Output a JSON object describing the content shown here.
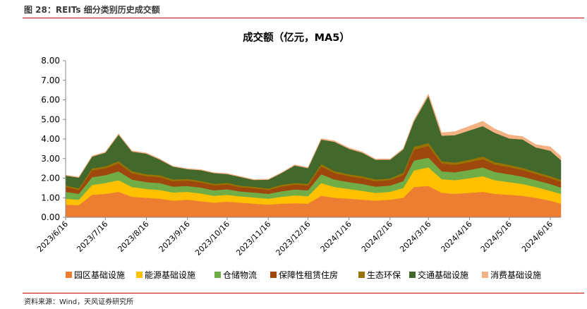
{
  "header": {
    "caption": "图 28：REITs 细分类别历史成交额"
  },
  "footer": {
    "source": "资料来源：Wind，天风证券研究所"
  },
  "chart_data": {
    "type": "area",
    "stacked": true,
    "title": "成交额（亿元，MA5）",
    "ylim": [
      0,
      8
    ],
    "yticks": [
      "0.00",
      "1.00",
      "2.00",
      "3.00",
      "4.00",
      "5.00",
      "6.00",
      "7.00",
      "8.00"
    ],
    "grid": false,
    "legend_position": "bottom",
    "x_tick_labels": [
      "2023/6/16",
      "2023/7/16",
      "2023/8/16",
      "2023/9/16",
      "2023/10/16",
      "2023/11/16",
      "2023/12/16",
      "2024/1/16",
      "2024/2/16",
      "2024/3/16",
      "2024/4/16",
      "2024/5/16",
      "2024/6/16"
    ],
    "x": [
      "2023/6/16",
      "2023/6/26",
      "2023/7/6",
      "2023/7/16",
      "2023/7/26",
      "2023/8/5",
      "2023/8/16",
      "2023/8/26",
      "2023/9/5",
      "2023/9/16",
      "2023/9/26",
      "2023/10/6",
      "2023/10/16",
      "2023/10/26",
      "2023/11/5",
      "2023/11/16",
      "2023/11/26",
      "2023/12/6",
      "2023/12/16",
      "2023/12/26",
      "2024/1/5",
      "2024/1/16",
      "2024/1/26",
      "2024/2/5",
      "2024/2/16",
      "2024/2/26",
      "2024/3/5",
      "2024/3/16",
      "2024/3/26",
      "2024/4/5",
      "2024/4/16",
      "2024/4/26",
      "2024/5/5",
      "2024/5/16",
      "2024/5/26",
      "2024/6/5",
      "2024/6/16",
      "2024/6/24"
    ],
    "series": [
      {
        "name": "园区基础设施",
        "color": "#ed7d31",
        "values": [
          0.65,
          0.62,
          1.15,
          1.2,
          1.3,
          1.05,
          1.0,
          0.95,
          0.85,
          0.9,
          0.82,
          0.75,
          0.8,
          0.75,
          0.7,
          0.65,
          0.7,
          0.72,
          0.7,
          1.1,
          1.0,
          0.95,
          0.9,
          0.85,
          0.9,
          1.0,
          1.55,
          1.6,
          1.25,
          1.2,
          1.25,
          1.3,
          1.2,
          1.15,
          1.1,
          1.0,
          0.85,
          0.7
        ]
      },
      {
        "name": "能源基础设施",
        "color": "#ffc000",
        "values": [
          0.3,
          0.28,
          0.5,
          0.55,
          0.6,
          0.5,
          0.45,
          0.45,
          0.42,
          0.4,
          0.4,
          0.35,
          0.35,
          0.32,
          0.32,
          0.3,
          0.35,
          0.4,
          0.38,
          0.65,
          0.55,
          0.5,
          0.45,
          0.4,
          0.4,
          0.5,
          0.85,
          0.95,
          0.7,
          0.7,
          0.75,
          0.8,
          0.7,
          0.65,
          0.6,
          0.55,
          0.5,
          0.5
        ]
      },
      {
        "name": "仓储物流",
        "color": "#70ad47",
        "values": [
          0.35,
          0.3,
          0.4,
          0.4,
          0.45,
          0.38,
          0.35,
          0.35,
          0.3,
          0.3,
          0.3,
          0.28,
          0.28,
          0.25,
          0.25,
          0.25,
          0.28,
          0.3,
          0.3,
          0.45,
          0.38,
          0.35,
          0.35,
          0.32,
          0.32,
          0.35,
          0.5,
          0.5,
          0.4,
          0.4,
          0.42,
          0.45,
          0.42,
          0.4,
          0.38,
          0.35,
          0.35,
          0.32
        ]
      },
      {
        "name": "保障性租赁住房",
        "color": "#9e480e",
        "values": [
          0.25,
          0.2,
          0.35,
          0.35,
          0.4,
          0.33,
          0.3,
          0.3,
          0.28,
          0.28,
          0.26,
          0.25,
          0.25,
          0.22,
          0.22,
          0.2,
          0.25,
          0.25,
          0.25,
          0.4,
          0.33,
          0.3,
          0.3,
          0.28,
          0.28,
          0.32,
          0.55,
          0.6,
          0.4,
          0.38,
          0.4,
          0.42,
          0.38,
          0.36,
          0.34,
          0.32,
          0.3,
          0.3
        ]
      },
      {
        "name": "生态环保",
        "color": "#997300",
        "values": [
          0.08,
          0.08,
          0.1,
          0.1,
          0.12,
          0.1,
          0.1,
          0.1,
          0.09,
          0.08,
          0.08,
          0.08,
          0.08,
          0.07,
          0.07,
          0.07,
          0.08,
          0.08,
          0.08,
          0.12,
          0.1,
          0.1,
          0.1,
          0.09,
          0.09,
          0.1,
          0.15,
          0.15,
          0.12,
          0.12,
          0.12,
          0.14,
          0.12,
          0.12,
          0.11,
          0.1,
          0.1,
          0.1
        ]
      },
      {
        "name": "交通基础设施",
        "color": "#43682b",
        "values": [
          0.5,
          0.55,
          0.6,
          0.7,
          1.35,
          1.0,
          1.05,
          0.8,
          0.65,
          0.5,
          0.55,
          0.55,
          0.45,
          0.45,
          0.35,
          0.45,
          0.6,
          0.9,
          0.8,
          1.25,
          1.5,
          1.3,
          1.2,
          1.0,
          0.95,
          1.2,
          1.3,
          2.4,
          1.3,
          1.4,
          1.5,
          1.55,
          1.5,
          1.35,
          1.45,
          1.25,
          1.3,
          1.0
        ]
      },
      {
        "name": "消费基础设施",
        "color": "#f4b183",
        "values": [
          0.03,
          0.03,
          0.04,
          0.04,
          0.05,
          0.04,
          0.04,
          0.04,
          0.03,
          0.03,
          0.03,
          0.03,
          0.03,
          0.03,
          0.03,
          0.03,
          0.03,
          0.04,
          0.04,
          0.05,
          0.05,
          0.05,
          0.05,
          0.04,
          0.04,
          0.05,
          0.08,
          0.1,
          0.15,
          0.18,
          0.22,
          0.25,
          0.2,
          0.18,
          0.15,
          0.15,
          0.2,
          0.2
        ]
      }
    ]
  }
}
